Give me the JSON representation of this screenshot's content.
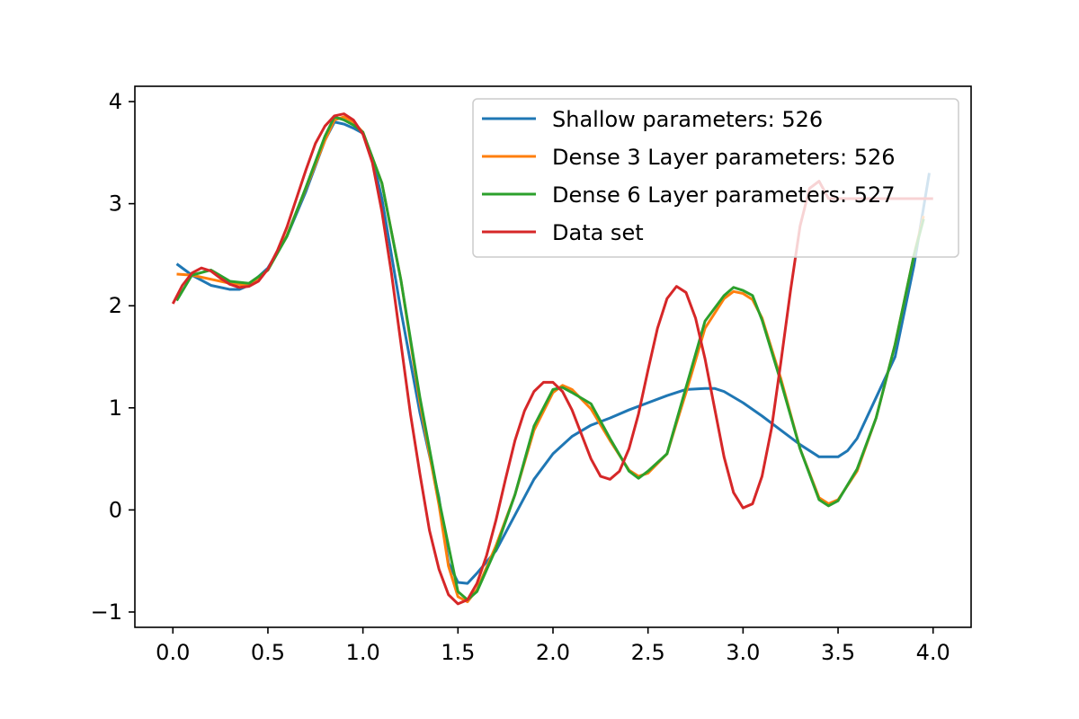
{
  "chart_data": {
    "type": "line",
    "title": "",
    "xlabel": "",
    "ylabel": "",
    "xlim": [
      -0.2,
      4.2
    ],
    "ylim": [
      -1.15,
      4.15
    ],
    "xticks": [
      0.0,
      0.5,
      1.0,
      1.5,
      2.0,
      2.5,
      3.0,
      3.5,
      4.0
    ],
    "xtick_labels": [
      "0.0",
      "0.5",
      "1.0",
      "1.5",
      "2.0",
      "2.5",
      "3.0",
      "3.5",
      "4.0"
    ],
    "yticks": [
      -1,
      0,
      1,
      2,
      3,
      4
    ],
    "ytick_labels": [
      "−1",
      "0",
      "1",
      "2",
      "3",
      "4"
    ],
    "grid": false,
    "legend_position": "top-right",
    "series": [
      {
        "name": "Shallow parameters: 526",
        "color": "#1f77b4",
        "x": [
          0.02,
          0.1,
          0.2,
          0.3,
          0.35,
          0.4,
          0.5,
          0.6,
          0.7,
          0.8,
          0.85,
          0.9,
          0.95,
          1.0,
          1.05,
          1.1,
          1.2,
          1.3,
          1.4,
          1.45,
          1.5,
          1.55,
          1.6,
          1.7,
          1.8,
          1.9,
          2.0,
          2.1,
          2.2,
          2.3,
          2.4,
          2.5,
          2.6,
          2.7,
          2.8,
          2.85,
          2.9,
          3.0,
          3.1,
          3.2,
          3.3,
          3.4,
          3.5,
          3.55,
          3.6,
          3.65,
          3.7,
          3.8,
          3.9,
          3.98
        ],
        "y": [
          2.41,
          2.3,
          2.2,
          2.16,
          2.16,
          2.2,
          2.37,
          2.68,
          3.12,
          3.62,
          3.8,
          3.78,
          3.74,
          3.69,
          3.45,
          3.05,
          1.95,
          0.95,
          0.12,
          -0.52,
          -0.71,
          -0.72,
          -0.62,
          -0.4,
          -0.05,
          0.3,
          0.55,
          0.72,
          0.83,
          0.9,
          0.98,
          1.05,
          1.12,
          1.18,
          1.19,
          1.19,
          1.16,
          1.05,
          0.92,
          0.78,
          0.64,
          0.52,
          0.52,
          0.58,
          0.7,
          0.9,
          1.1,
          1.5,
          2.4,
          3.3
        ]
      },
      {
        "name": "Dense 3 Layer parameters: 526",
        "color": "#ff7f0e",
        "x": [
          0.02,
          0.1,
          0.2,
          0.3,
          0.4,
          0.5,
          0.6,
          0.7,
          0.8,
          0.85,
          0.9,
          0.95,
          1.0,
          1.1,
          1.2,
          1.3,
          1.4,
          1.45,
          1.5,
          1.55,
          1.6,
          1.7,
          1.8,
          1.9,
          2.0,
          2.05,
          2.1,
          2.2,
          2.3,
          2.4,
          2.45,
          2.5,
          2.6,
          2.7,
          2.8,
          2.9,
          2.95,
          3.0,
          3.05,
          3.1,
          3.2,
          3.3,
          3.4,
          3.45,
          3.5,
          3.6,
          3.7,
          3.8,
          3.9,
          3.95
        ],
        "y": [
          2.31,
          2.3,
          2.26,
          2.22,
          2.2,
          2.35,
          2.69,
          3.15,
          3.62,
          3.82,
          3.85,
          3.8,
          3.7,
          3.2,
          2.25,
          1.05,
          0.05,
          -0.55,
          -0.85,
          -0.9,
          -0.78,
          -0.35,
          0.15,
          0.78,
          1.15,
          1.22,
          1.18,
          0.99,
          0.68,
          0.39,
          0.33,
          0.36,
          0.55,
          1.15,
          1.78,
          2.07,
          2.14,
          2.12,
          2.06,
          1.88,
          1.28,
          0.6,
          0.12,
          0.06,
          0.1,
          0.38,
          0.9,
          1.62,
          2.5,
          2.88
        ]
      },
      {
        "name": "Dense 6 Layer parameters: 527",
        "color": "#2ca02c",
        "x": [
          0.02,
          0.1,
          0.2,
          0.3,
          0.4,
          0.5,
          0.6,
          0.7,
          0.8,
          0.85,
          0.9,
          0.95,
          1.0,
          1.1,
          1.2,
          1.3,
          1.4,
          1.5,
          1.55,
          1.6,
          1.7,
          1.8,
          1.9,
          2.0,
          2.05,
          2.1,
          2.2,
          2.3,
          2.4,
          2.45,
          2.5,
          2.6,
          2.7,
          2.8,
          2.9,
          2.95,
          3.0,
          3.05,
          3.1,
          3.2,
          3.3,
          3.4,
          3.45,
          3.5,
          3.6,
          3.7,
          3.8,
          3.9,
          3.95
        ],
        "y": [
          2.05,
          2.3,
          2.35,
          2.24,
          2.22,
          2.35,
          2.68,
          3.16,
          3.66,
          3.85,
          3.82,
          3.77,
          3.7,
          3.2,
          2.25,
          1.1,
          0.1,
          -0.8,
          -0.88,
          -0.8,
          -0.38,
          0.15,
          0.82,
          1.18,
          1.2,
          1.15,
          1.04,
          0.7,
          0.38,
          0.31,
          0.38,
          0.55,
          1.2,
          1.85,
          2.1,
          2.18,
          2.15,
          2.1,
          1.86,
          1.25,
          0.6,
          0.1,
          0.04,
          0.09,
          0.4,
          0.9,
          1.62,
          2.5,
          2.85
        ]
      },
      {
        "name": "Data set",
        "color": "#d62728",
        "x": [
          0.0,
          0.05,
          0.1,
          0.15,
          0.2,
          0.25,
          0.3,
          0.35,
          0.4,
          0.45,
          0.5,
          0.55,
          0.6,
          0.65,
          0.7,
          0.75,
          0.8,
          0.85,
          0.9,
          0.95,
          1.0,
          1.05,
          1.1,
          1.15,
          1.2,
          1.25,
          1.3,
          1.35,
          1.4,
          1.45,
          1.5,
          1.55,
          1.6,
          1.65,
          1.7,
          1.75,
          1.8,
          1.85,
          1.9,
          1.95,
          2.0,
          2.05,
          2.1,
          2.15,
          2.2,
          2.25,
          2.3,
          2.35,
          2.4,
          2.45,
          2.5,
          2.55,
          2.6,
          2.65,
          2.7,
          2.75,
          2.8,
          2.85,
          2.9,
          2.95,
          3.0,
          3.05,
          3.1,
          3.15,
          3.2,
          3.25,
          3.3,
          3.35,
          3.4,
          3.45,
          3.5,
          3.55,
          3.6,
          3.65,
          3.7,
          3.75,
          3.8,
          3.85,
          3.9,
          3.95,
          4.0
        ],
        "y": [
          2.02,
          2.2,
          2.32,
          2.37,
          2.34,
          2.27,
          2.21,
          2.18,
          2.19,
          2.24,
          2.36,
          2.54,
          2.77,
          3.05,
          3.33,
          3.59,
          3.76,
          3.86,
          3.88,
          3.82,
          3.68,
          3.4,
          2.92,
          2.32,
          1.63,
          0.94,
          0.35,
          -0.2,
          -0.58,
          -0.83,
          -0.92,
          -0.88,
          -0.72,
          -0.45,
          -0.1,
          0.3,
          0.68,
          0.97,
          1.16,
          1.25,
          1.25,
          1.16,
          0.98,
          0.74,
          0.5,
          0.33,
          0.3,
          0.38,
          0.6,
          0.94,
          1.37,
          1.78,
          2.07,
          2.19,
          2.13,
          1.88,
          1.48,
          1.0,
          0.52,
          0.17,
          0.02,
          0.06,
          0.33,
          0.8,
          1.46,
          2.15,
          2.78,
          3.15,
          3.22,
          3.05,
          3.05,
          3.05,
          3.05,
          3.05,
          3.05,
          3.05,
          3.05,
          3.05,
          3.05,
          3.05,
          3.05
        ]
      }
    ]
  }
}
